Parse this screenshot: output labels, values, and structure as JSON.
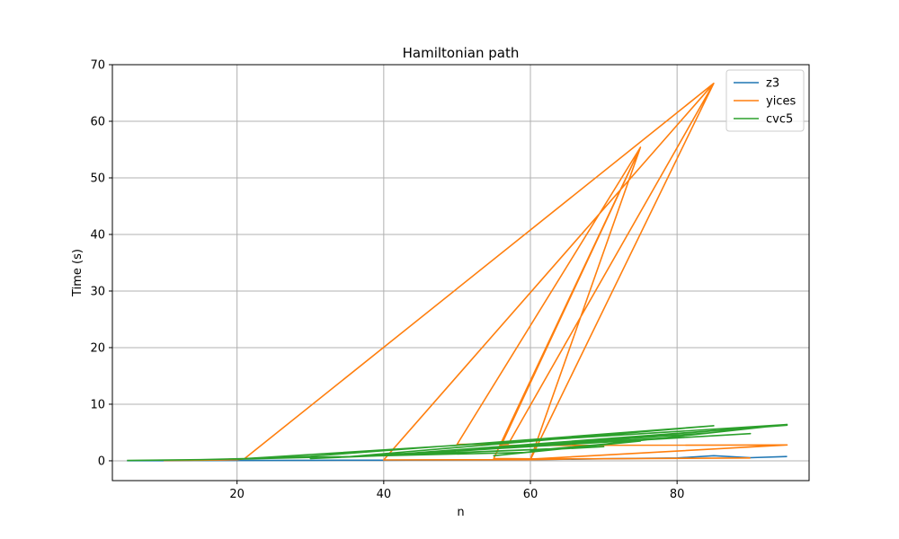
{
  "chart_data": {
    "type": "line",
    "title": "Hamiltonian path",
    "xlabel": "n",
    "ylabel": "Time (s)",
    "xlim": [
      3,
      98
    ],
    "ylim": [
      -3.5,
      70
    ],
    "xticks": [
      20,
      40,
      60,
      80
    ],
    "yticks": [
      0,
      10,
      20,
      30,
      40,
      50,
      60,
      70
    ],
    "grid": true,
    "legend_position": "top-right",
    "series": [
      {
        "name": "z3",
        "color": "#1f77b4",
        "points": [
          [
            5,
            0.02
          ],
          [
            10,
            0.03
          ],
          [
            20,
            0.05
          ],
          [
            30,
            0.08
          ],
          [
            40,
            0.1
          ],
          [
            50,
            0.15
          ],
          [
            60,
            0.2
          ],
          [
            70,
            0.35
          ],
          [
            80,
            0.5
          ],
          [
            85,
            0.9
          ],
          [
            90,
            0.55
          ],
          [
            95,
            0.75
          ]
        ]
      },
      {
        "name": "yices",
        "color": "#ff7f0e",
        "points": [
          [
            10,
            0.05
          ],
          [
            15,
            0.1
          ],
          [
            20,
            0.2
          ],
          [
            21,
            0.35
          ],
          [
            85,
            66.7
          ],
          [
            40,
            0.15
          ],
          [
            60,
            0.2
          ],
          [
            65,
            0.3
          ],
          [
            55,
            0.4
          ],
          [
            75,
            55.4
          ],
          [
            50,
            2.9
          ],
          [
            57,
            3.0
          ],
          [
            85,
            66.7
          ],
          [
            60,
            0.2
          ],
          [
            75,
            55.4
          ],
          [
            56,
            2.7
          ],
          [
            95,
            2.8
          ],
          [
            60,
            0.3
          ],
          [
            90,
            0.5
          ]
        ]
      },
      {
        "name": "cvc5",
        "color": "#2ca02c",
        "points": [
          [
            5,
            0.05
          ],
          [
            15,
            0.2
          ],
          [
            25,
            0.5
          ],
          [
            30,
            0.8
          ],
          [
            85,
            6.2
          ],
          [
            35,
            0.7
          ],
          [
            90,
            4.8
          ],
          [
            40,
            1.0
          ],
          [
            95,
            6.3
          ],
          [
            45,
            1.3
          ],
          [
            80,
            4.2
          ],
          [
            50,
            1.8
          ],
          [
            85,
            5.0
          ],
          [
            55,
            0.9
          ],
          [
            75,
            3.5
          ],
          [
            60,
            1.8
          ],
          [
            70,
            2.5
          ],
          [
            30,
            0.4
          ],
          [
            65,
            2.2
          ],
          [
            95,
            6.4
          ],
          [
            20,
            0.3
          ],
          [
            60,
            1.5
          ]
        ]
      }
    ]
  }
}
